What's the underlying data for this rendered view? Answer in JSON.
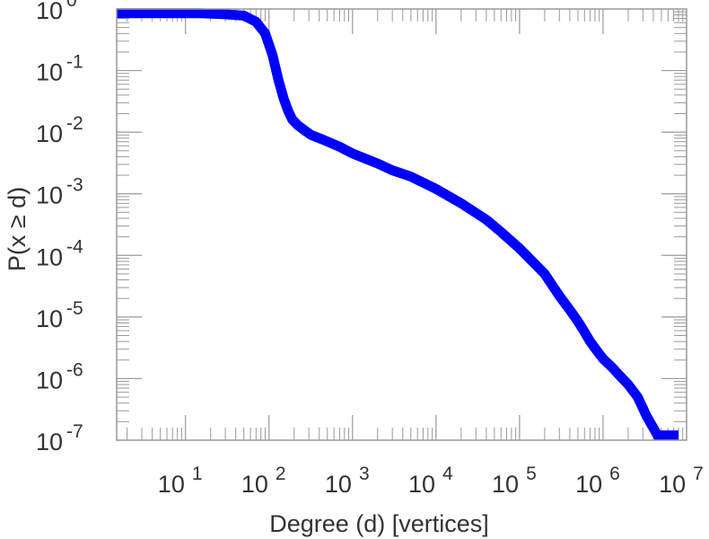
{
  "chart_data": {
    "type": "line",
    "xlabel": "Degree (d) [vertices]",
    "ylabel": "P(x ≥ d)",
    "x_scale": "log",
    "y_scale": "log",
    "xlim": [
      1.5,
      10000000
    ],
    "ylim": [
      1e-07,
      1
    ],
    "x_ticks": [
      {
        "value": 10,
        "base": "10",
        "exp": "1"
      },
      {
        "value": 100,
        "base": "10",
        "exp": "2"
      },
      {
        "value": 1000,
        "base": "10",
        "exp": "3"
      },
      {
        "value": 10000,
        "base": "10",
        "exp": "4"
      },
      {
        "value": 100000,
        "base": "10",
        "exp": "5"
      },
      {
        "value": 1000000,
        "base": "10",
        "exp": "6"
      },
      {
        "value": 10000000,
        "base": "10",
        "exp": "7"
      }
    ],
    "y_ticks": [
      {
        "value": 1,
        "base": "10",
        "exp": "0"
      },
      {
        "value": 0.1,
        "base": "10",
        "exp": "-1"
      },
      {
        "value": 0.01,
        "base": "10",
        "exp": "-2"
      },
      {
        "value": 0.001,
        "base": "10",
        "exp": "-3"
      },
      {
        "value": 0.0001,
        "base": "10",
        "exp": "-4"
      },
      {
        "value": 1e-05,
        "base": "10",
        "exp": "-5"
      },
      {
        "value": 1e-06,
        "base": "10",
        "exp": "-6"
      },
      {
        "value": 1e-07,
        "base": "10",
        "exp": "-7"
      }
    ],
    "grid": false,
    "series": [
      {
        "color": "#0000ff",
        "x": [
          1.5,
          5,
          15,
          30,
          50,
          70,
          90,
          110,
          130,
          150,
          170,
          190,
          220,
          260,
          320,
          450,
          700,
          1000,
          2000,
          3000,
          5000,
          10000,
          20000,
          40000,
          60000,
          100000,
          200000,
          300000,
          400000,
          500000,
          600000,
          700000,
          850000,
          1000000,
          1300000,
          1600000,
          2000000,
          2600000,
          3300000,
          4500000,
          6000000,
          8000000
        ],
        "y": [
          0.85,
          0.85,
          0.85,
          0.82,
          0.78,
          0.62,
          0.4,
          0.18,
          0.07,
          0.035,
          0.022,
          0.016,
          0.013,
          0.011,
          0.009,
          0.0075,
          0.0058,
          0.0045,
          0.0031,
          0.0024,
          0.0019,
          0.0012,
          0.0007,
          0.00038,
          0.00024,
          0.00013,
          5e-05,
          2.2e-05,
          1.3e-05,
          8.5e-06,
          5.7e-06,
          4e-06,
          2.8e-06,
          2.1e-06,
          1.5e-06,
          1.1e-06,
          8e-07,
          5e-07,
          2.5e-07,
          1.2e-07,
          1.2e-07,
          1.2e-07
        ]
      }
    ]
  }
}
